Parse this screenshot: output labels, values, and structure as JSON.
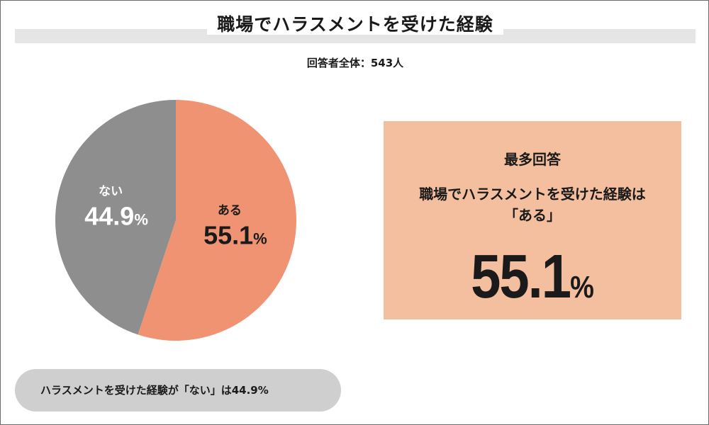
{
  "title": "職場でハラスメントを受けた経験",
  "subtitle": "回答者全体：543人",
  "colors": {
    "yes": "#f09373",
    "no": "#8e8e8e",
    "highlight_bg": "#f4bf9e",
    "pill_bg": "#cfcfcf"
  },
  "chart_data": {
    "type": "pie",
    "title": "職場でハラスメントを受けた経験",
    "slices": [
      {
        "label": "ある",
        "value": 55.1,
        "display": "55.1",
        "unit": "%",
        "color": "#f09373"
      },
      {
        "label": "ない",
        "value": 44.9,
        "display": "44.9",
        "unit": "%",
        "color": "#8e8e8e"
      }
    ],
    "start": "12 o'clock",
    "direction": "clockwise"
  },
  "highlight": {
    "heading": "最多回答",
    "line1": "職場でハラスメントを受けた経験は",
    "line2": "「ある」",
    "value": "55.1",
    "unit": "%"
  },
  "footnote": "ハラスメントを受けた経験が「ない」は44.9%"
}
